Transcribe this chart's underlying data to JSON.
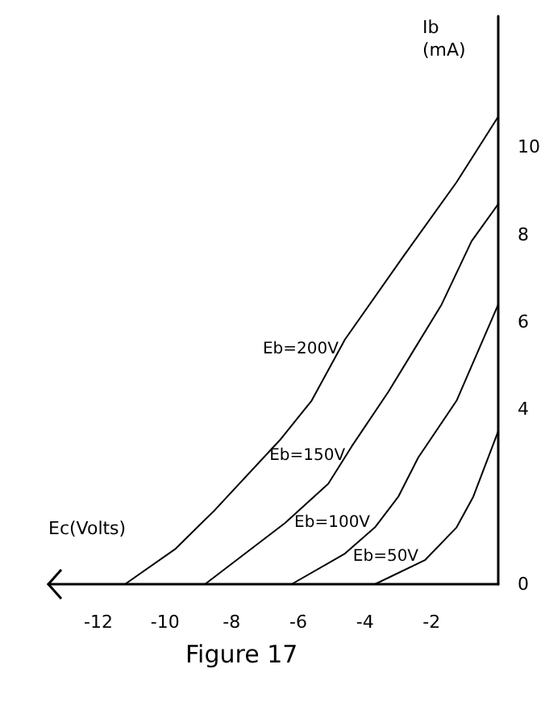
{
  "chart_data": {
    "type": "line",
    "xlabel": "Ec(Volts)",
    "ylabel": "Ib (mA)",
    "annotations": [
      "Figure 17"
    ],
    "xlim": [
      -13.5,
      0
    ],
    "ylim": [
      0,
      13
    ],
    "xticks": [
      -12,
      -10,
      -8,
      -6,
      -4,
      -2
    ],
    "yticks": [
      0,
      4,
      6,
      8,
      10
    ],
    "grid": false,
    "legend": false,
    "marker": "none",
    "line_style": "solid",
    "series": [
      {
        "name": "Eb=200V",
        "color": "#000000",
        "x": [
          -11.2,
          -9.7,
          -8.5,
          -6.55,
          -5.6,
          -4.6,
          -2.85,
          -1.25,
          0
        ],
        "values": [
          0,
          0.8,
          1.7,
          3.3,
          4.2,
          5.6,
          7.5,
          9.2,
          10.7
        ]
      },
      {
        "name": "Eb=150V",
        "color": "#000000",
        "x": [
          -8.8,
          -6.4,
          -5.1,
          -4.4,
          -3.3,
          -1.7,
          -0.8,
          0
        ],
        "values": [
          0,
          1.4,
          2.3,
          3.15,
          4.4,
          6.4,
          7.85,
          8.7
        ]
      },
      {
        "name": "Eb=100V",
        "color": "#000000",
        "x": [
          -6.2,
          -4.6,
          -3.7,
          -3.0,
          -2.4,
          -1.25,
          0
        ],
        "values": [
          0,
          0.7,
          1.3,
          2.0,
          2.9,
          4.2,
          6.4
        ]
      },
      {
        "name": "Eb=50V",
        "color": "#000000",
        "x": [
          -3.7,
          -2.2,
          -1.25,
          -0.75,
          0
        ],
        "values": [
          0,
          0.55,
          1.3,
          2.0,
          3.5
        ]
      }
    ]
  }
}
